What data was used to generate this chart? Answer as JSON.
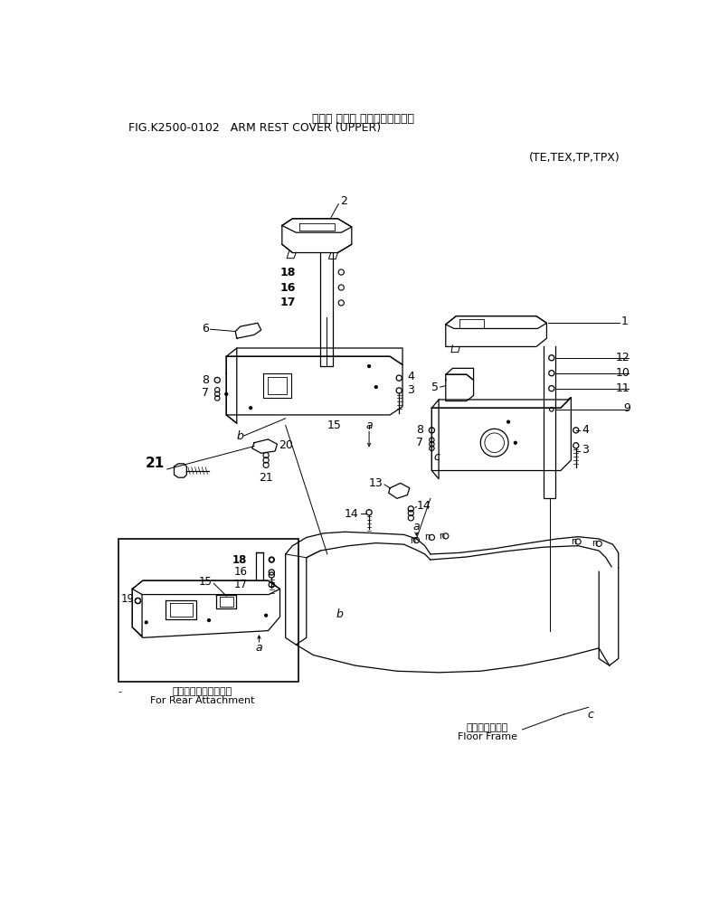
{
  "title_japanese": "アーム レスト カバー（アッパ）",
  "title_english": "FIG.K2500-0102   ARM REST COVER (UPPER)",
  "subtitle": "(TE,TEX,TP,TPX)",
  "bg_color": "#ffffff",
  "line_color": "#000000",
  "inset_caption_jp": "後方用アタッチメント",
  "inset_caption_en": "For Rear Attachment",
  "floor_jp": "フロアフレーム",
  "floor_en": "Floor Frame"
}
